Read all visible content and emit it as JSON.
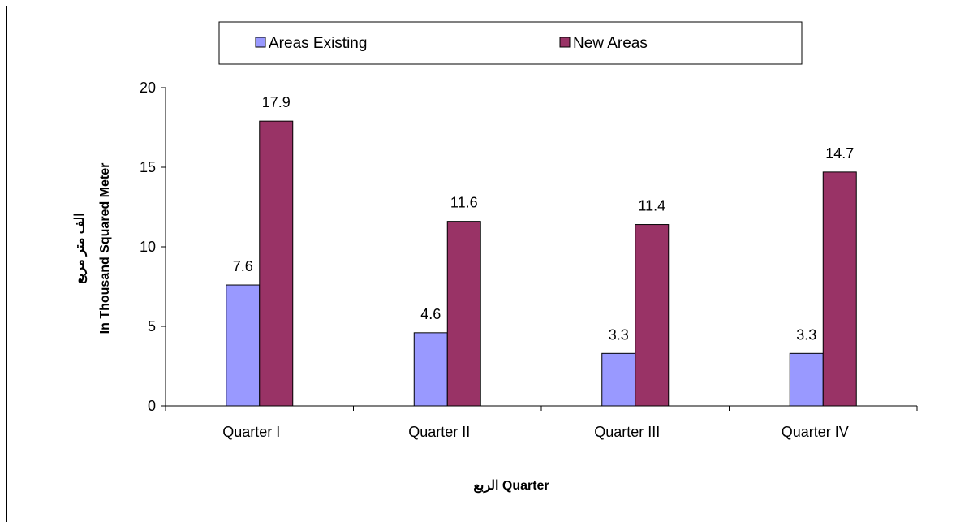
{
  "title": "",
  "chart_data": {
    "type": "bar",
    "categories": [
      "Quarter I",
      "Quarter II",
      "Quarter III",
      "Quarter IV"
    ],
    "series": [
      {
        "name": "Areas Existing",
        "values": [
          7.6,
          4.6,
          3.3,
          3.3
        ],
        "color": "#9999FF"
      },
      {
        "name": "New Areas",
        "values": [
          17.9,
          11.6,
          11.4,
          14.7
        ],
        "color": "#993366"
      }
    ],
    "xlabel": "الربع Quarter",
    "ylabel_lines": [
      "الف متر مربع",
      "In Thousand Squared Meter"
    ],
    "ylim": [
      0,
      20
    ],
    "yticks": [
      0,
      5,
      10,
      15,
      20
    ],
    "grid": false,
    "legend_position": "top"
  }
}
